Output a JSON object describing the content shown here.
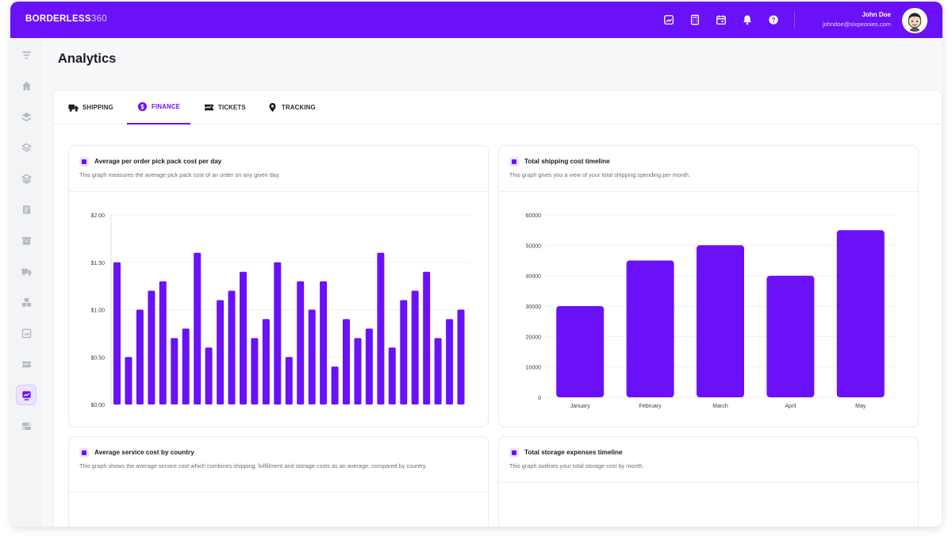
{
  "brand": {
    "name": "BORDERLESS",
    "suffix": "360"
  },
  "topbar": {
    "icons": [
      "reports-icon",
      "calculator-icon",
      "calendar-icon",
      "bell-icon",
      "help-icon"
    ],
    "user_name": "John Doe",
    "user_email": "johndoe@sixpeonies.com"
  },
  "sidebar": {
    "items": [
      "filter-icon",
      "home-icon",
      "layers-icon",
      "layers-alt-icon",
      "stack-icon",
      "notes-icon",
      "archive-icon",
      "truck-icon",
      "boxes-icon",
      "report-icon",
      "ticket-icon",
      "analytics-icon",
      "toggle-icon"
    ],
    "active": "analytics-icon"
  },
  "page_title": "Analytics",
  "tabs": [
    {
      "label": "SHIPPING",
      "icon": "truck-icon"
    },
    {
      "label": "FINANCE",
      "icon": "dollar-icon",
      "active": true
    },
    {
      "label": "TICKETS",
      "icon": "ticket-icon"
    },
    {
      "label": "TRACKING",
      "icon": "pin-icon"
    }
  ],
  "cards": {
    "pick_pack": {
      "title": "Average per order pick pack cost per day",
      "description": "This graph measures the average pick pack cost of an order on any given day."
    },
    "shipping_timeline": {
      "title": "Total shipping cost timeline",
      "description": "This graph gives you a view of your total shipping spending per month."
    },
    "service_cost": {
      "title": "Average service cost by country",
      "description": "This graph shows the average service cost which combines shipping, fulfillment and storage costs as an average, compared by country."
    },
    "storage_timeline": {
      "title": "Total storage expenses timeline",
      "description": "This graph outlines your total storage cost by month."
    }
  },
  "colors": {
    "accent": "#6a11f8",
    "accent_light": "#ece4ff"
  },
  "chart_data": [
    {
      "type": "bar",
      "title": "Average per order pick pack cost per day",
      "ylim": [
        0,
        2
      ],
      "yticks": [
        "$0.00",
        "$0.50",
        "$1.00",
        "$1.50",
        "$2.00"
      ],
      "values": [
        1.5,
        0.5,
        1.0,
        1.2,
        1.3,
        0.7,
        0.8,
        1.6,
        0.6,
        1.1,
        1.2,
        1.4,
        0.7,
        0.9,
        1.5,
        0.5,
        1.3,
        1.0,
        1.3,
        0.4,
        0.9,
        0.7,
        0.8,
        1.6,
        0.6,
        1.1,
        1.2,
        1.4,
        0.7,
        0.9,
        1.0
      ]
    },
    {
      "type": "bar",
      "title": "Total shipping cost timeline",
      "ylim": [
        0,
        60000
      ],
      "yticks": [
        "0",
        "10000",
        "20000",
        "30000",
        "40000",
        "50000",
        "60000"
      ],
      "categories": [
        "January",
        "February",
        "March",
        "April",
        "May"
      ],
      "values": [
        30000,
        45000,
        50000,
        40000,
        55000
      ]
    }
  ]
}
